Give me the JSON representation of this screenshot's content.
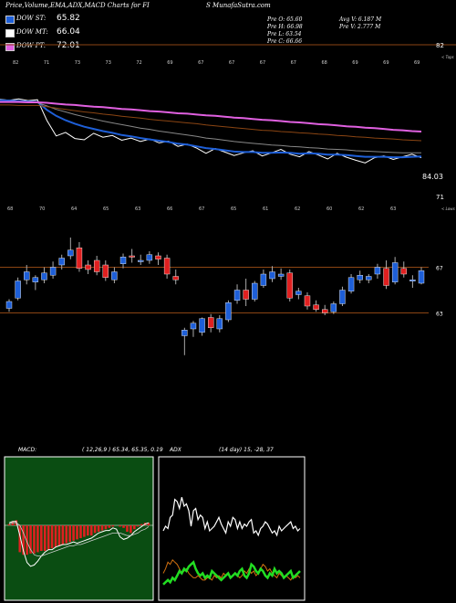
{
  "header": {
    "title": "Price,Volume,EMA,ADX,MACD Charts for FI",
    "site": "S MunafaSutra.com"
  },
  "legend": [
    {
      "label": "DOW ST:",
      "value": "65.82",
      "color": "#1e5fd8"
    },
    {
      "label": "DOW MT:",
      "value": "66.04",
      "color": "#ffffff"
    },
    {
      "label": "DOW PT:",
      "value": "72.01",
      "color": "#e060e0"
    }
  ],
  "quote": {
    "open": "Pre  O: 65.60",
    "high": "Pre  H: 66.98",
    "low": "Pre  L: 63.54",
    "close": "Pre  C: 66.66",
    "avg_vol": "Avg V: 6.187 M",
    "pre_vol": "Pre  V: 2.777 M"
  },
  "chart_data": [
    {
      "type": "line",
      "panel": "ema",
      "axis_labels": {
        "top": "82",
        "bottom": "71",
        "right_top": "< Tops",
        "price_tag": "84.03"
      },
      "top_tick_labels": [
        "82",
        "71",
        "73",
        "73",
        "72",
        "69",
        "67",
        "67",
        "67",
        "67",
        "68",
        "69",
        "69",
        "69"
      ],
      "ylim": [
        60,
        90
      ],
      "series": [
        {
          "color": "#ffffff",
          "values": [
            80.2,
            80.0,
            80.3,
            79.9,
            80.1,
            75.4,
            71.8,
            72.6,
            71.2,
            70.9,
            72.4,
            71.5,
            71.9,
            70.8,
            71.3,
            70.5,
            71.1,
            70.2,
            70.6,
            69.4,
            69.9,
            69.0,
            67.8,
            68.9,
            68.1,
            67.3,
            67.9,
            68.4,
            67.2,
            67.9,
            68.7,
            67.6,
            67.0,
            68.2,
            67.4,
            66.5,
            67.8,
            66.9,
            66.2,
            65.6,
            66.8,
            67.2,
            66.4,
            67.0,
            67.6,
            66.8
          ]
        },
        {
          "color": "#1e5fd8",
          "values": [
            80.0,
            79.9,
            79.8,
            79.7,
            79.6,
            77.8,
            76.4,
            75.4,
            74.6,
            73.9,
            73.4,
            72.9,
            72.5,
            72.0,
            71.7,
            71.3,
            71.0,
            70.7,
            70.4,
            70.0,
            69.8,
            69.4,
            69.0,
            68.8,
            68.5,
            68.2,
            68.1,
            68.1,
            67.9,
            67.9,
            68.0,
            67.9,
            67.7,
            67.8,
            67.7,
            67.5,
            67.5,
            67.4,
            67.2,
            67.0,
            67.0,
            67.0,
            66.9,
            66.9,
            67.0,
            67.1
          ]
        },
        {
          "color": "#888888",
          "values": [
            79.6,
            79.6,
            79.5,
            79.5,
            79.4,
            78.7,
            77.9,
            77.3,
            76.7,
            76.2,
            75.7,
            75.2,
            74.8,
            74.4,
            74.0,
            73.6,
            73.3,
            72.9,
            72.6,
            72.3,
            72.0,
            71.7,
            71.3,
            71.1,
            70.8,
            70.5,
            70.3,
            70.1,
            69.9,
            69.7,
            69.6,
            69.4,
            69.3,
            69.1,
            69.0,
            68.8,
            68.7,
            68.6,
            68.4,
            68.3,
            68.2,
            68.1,
            68.0,
            67.9,
            67.9,
            67.9
          ]
        },
        {
          "color": "#8b4513",
          "values": [
            78.9,
            78.9,
            78.8,
            78.8,
            78.8,
            78.5,
            78.2,
            77.9,
            77.6,
            77.3,
            77.1,
            76.8,
            76.6,
            76.3,
            76.1,
            75.9,
            75.6,
            75.4,
            75.2,
            75.0,
            74.8,
            74.6,
            74.3,
            74.1,
            73.9,
            73.7,
            73.5,
            73.3,
            73.1,
            73.0,
            72.8,
            72.7,
            72.5,
            72.4,
            72.2,
            72.1,
            71.9,
            71.8,
            71.6,
            71.5,
            71.3,
            71.2,
            71.1,
            70.9,
            70.8,
            70.7
          ]
        },
        {
          "color": "#e060e0",
          "values": [
            79.6,
            79.6,
            79.6,
            79.5,
            79.5,
            79.4,
            79.2,
            79.0,
            78.9,
            78.7,
            78.5,
            78.4,
            78.2,
            78.0,
            77.9,
            77.7,
            77.5,
            77.4,
            77.2,
            77.0,
            76.9,
            76.7,
            76.5,
            76.4,
            76.2,
            76.0,
            75.9,
            75.7,
            75.5,
            75.4,
            75.2,
            75.0,
            74.9,
            74.7,
            74.5,
            74.4,
            74.2,
            74.0,
            73.9,
            73.7,
            73.6,
            73.4,
            73.2,
            73.1,
            72.9,
            72.8
          ]
        }
      ]
    },
    {
      "type": "candlestick",
      "panel": "price",
      "axis_labels": {
        "right_top": "< Lows",
        "level_high": "67",
        "level_low": "63"
      },
      "top_tick_labels": [
        "68",
        "70",
        "64",
        "65",
        "63",
        "66",
        "67",
        "65",
        "61",
        "62",
        "60",
        "62",
        "63"
      ],
      "ylim": [
        58,
        72
      ],
      "levels": [
        67,
        63
      ],
      "candles": [
        {
          "o": 63.4,
          "h": 64.2,
          "l": 63.1,
          "c": 64.0
        },
        {
          "o": 64.3,
          "h": 66.1,
          "l": 64.1,
          "c": 65.8
        },
        {
          "o": 65.9,
          "h": 67.2,
          "l": 65.5,
          "c": 66.6
        },
        {
          "o": 65.7,
          "h": 66.3,
          "l": 65.0,
          "c": 66.1
        },
        {
          "o": 65.9,
          "h": 67.0,
          "l": 65.6,
          "c": 66.5
        },
        {
          "o": 66.3,
          "h": 67.5,
          "l": 66.0,
          "c": 67.0
        },
        {
          "o": 67.2,
          "h": 68.1,
          "l": 66.8,
          "c": 67.8
        },
        {
          "o": 68.0,
          "h": 69.6,
          "l": 67.7,
          "c": 68.5
        },
        {
          "o": 68.7,
          "h": 69.2,
          "l": 66.6,
          "c": 66.9
        },
        {
          "o": 67.2,
          "h": 67.6,
          "l": 66.4,
          "c": 66.8
        },
        {
          "o": 67.6,
          "h": 68.0,
          "l": 66.3,
          "c": 66.6
        },
        {
          "o": 67.2,
          "h": 67.6,
          "l": 65.8,
          "c": 66.1
        },
        {
          "o": 65.9,
          "h": 67.0,
          "l": 65.6,
          "c": 66.6
        },
        {
          "o": 67.3,
          "h": 68.2,
          "l": 66.9,
          "c": 67.9
        },
        {
          "o": 68.0,
          "h": 68.6,
          "l": 67.4,
          "c": 67.9
        },
        {
          "o": 67.6,
          "h": 68.1,
          "l": 67.2,
          "c": 67.6
        },
        {
          "o": 67.6,
          "h": 68.4,
          "l": 67.3,
          "c": 68.1
        },
        {
          "o": 68.0,
          "h": 68.3,
          "l": 67.2,
          "c": 67.7
        },
        {
          "o": 67.8,
          "h": 68.1,
          "l": 66.0,
          "c": 66.4
        },
        {
          "o": 66.2,
          "h": 66.8,
          "l": 65.5,
          "c": 65.9
        },
        {
          "o": 61.0,
          "h": 61.7,
          "l": 59.3,
          "c": 61.5
        },
        {
          "o": 61.6,
          "h": 62.3,
          "l": 60.9,
          "c": 62.1
        },
        {
          "o": 61.3,
          "h": 62.6,
          "l": 61.0,
          "c": 62.5
        },
        {
          "o": 62.6,
          "h": 62.9,
          "l": 61.3,
          "c": 61.7
        },
        {
          "o": 61.6,
          "h": 62.8,
          "l": 61.3,
          "c": 62.5
        },
        {
          "o": 62.4,
          "h": 64.1,
          "l": 62.2,
          "c": 63.9
        },
        {
          "o": 64.1,
          "h": 65.5,
          "l": 63.8,
          "c": 65.0
        },
        {
          "o": 65.0,
          "h": 66.0,
          "l": 63.6,
          "c": 64.2
        },
        {
          "o": 64.2,
          "h": 65.8,
          "l": 64.0,
          "c": 65.6
        },
        {
          "o": 65.4,
          "h": 66.8,
          "l": 65.2,
          "c": 66.4
        },
        {
          "o": 66.0,
          "h": 67.1,
          "l": 65.7,
          "c": 66.6
        },
        {
          "o": 66.2,
          "h": 66.9,
          "l": 65.9,
          "c": 66.4
        },
        {
          "o": 66.5,
          "h": 66.8,
          "l": 64.0,
          "c": 64.3
        },
        {
          "o": 64.6,
          "h": 65.2,
          "l": 64.2,
          "c": 64.9
        },
        {
          "o": 64.5,
          "h": 64.8,
          "l": 63.3,
          "c": 63.6
        },
        {
          "o": 63.7,
          "h": 64.1,
          "l": 63.1,
          "c": 63.3
        },
        {
          "o": 63.3,
          "h": 63.7,
          "l": 62.8,
          "c": 63.0
        },
        {
          "o": 63.1,
          "h": 64.0,
          "l": 62.9,
          "c": 63.8
        },
        {
          "o": 63.8,
          "h": 65.3,
          "l": 63.6,
          "c": 65.0
        },
        {
          "o": 64.9,
          "h": 66.4,
          "l": 64.7,
          "c": 66.1
        },
        {
          "o": 65.9,
          "h": 66.7,
          "l": 65.6,
          "c": 66.3
        },
        {
          "o": 65.9,
          "h": 66.4,
          "l": 65.6,
          "c": 66.2
        },
        {
          "o": 66.4,
          "h": 67.3,
          "l": 66.0,
          "c": 67.0
        },
        {
          "o": 66.9,
          "h": 67.6,
          "l": 65.1,
          "c": 65.4
        },
        {
          "o": 65.7,
          "h": 67.9,
          "l": 65.5,
          "c": 67.4
        },
        {
          "o": 66.9,
          "h": 67.5,
          "l": 66.1,
          "c": 66.4
        },
        {
          "o": 65.8,
          "h": 66.3,
          "l": 65.2,
          "c": 65.9
        },
        {
          "o": 65.6,
          "h": 67.0,
          "l": 65.5,
          "c": 66.7
        }
      ]
    },
    {
      "type": "macd",
      "panel": "macd",
      "label": "MACD:",
      "params": "( 12,26,9 ) 65.34,  65.35,  0.19",
      "ylim": [
        -4,
        3
      ],
      "histogram": [
        0.1,
        0.3,
        0.4,
        -2.1,
        -2.3,
        -2.3,
        -2.2,
        -2.2,
        -2.1,
        -2.0,
        -2.0,
        -1.9,
        -1.8,
        -1.7,
        -1.6,
        -1.5,
        -1.4,
        -1.3,
        -1.2,
        -1.1,
        -1.0,
        -0.9,
        -0.8,
        -0.8,
        -0.6,
        -0.5,
        -0.4,
        -0.3,
        -0.2,
        -0.1,
        0.0,
        -0.1,
        -0.2,
        -0.5,
        -0.6,
        -0.3,
        -0.1,
        0.1,
        0.2,
        0.2
      ],
      "macd_line": [
        0.2,
        0.3,
        0.3,
        -0.8,
        -2.0,
        -2.9,
        -3.2,
        -3.1,
        -2.8,
        -2.4,
        -2.1,
        -1.9,
        -1.9,
        -1.7,
        -1.6,
        -1.5,
        -1.5,
        -1.4,
        -1.3,
        -1.4,
        -1.3,
        -1.2,
        -1.1,
        -1.0,
        -0.8,
        -0.6,
        -0.5,
        -0.4,
        -0.4,
        -0.2,
        -0.3,
        -0.9,
        -1.1,
        -1.0,
        -0.8,
        -0.5,
        -0.3,
        -0.1,
        0.1,
        0.2
      ],
      "signal_line": [
        0.1,
        0.2,
        0.2,
        0.0,
        -0.6,
        -1.3,
        -1.9,
        -2.3,
        -2.4,
        -2.4,
        -2.3,
        -2.2,
        -2.1,
        -2.0,
        -1.9,
        -1.8,
        -1.7,
        -1.6,
        -1.6,
        -1.5,
        -1.5,
        -1.4,
        -1.3,
        -1.2,
        -1.1,
        -1.0,
        -0.9,
        -0.8,
        -0.7,
        -0.6,
        -0.6,
        -0.6,
        -0.7,
        -0.8,
        -0.8,
        -0.7,
        -0.6,
        -0.4,
        -0.3,
        -0.1
      ]
    },
    {
      "type": "adx",
      "panel": "adx",
      "label": "ADX",
      "params": "(14  day) 15,  -28,  37",
      "ylim": [
        0,
        60
      ],
      "plus_di": [
        29,
        31,
        30,
        35,
        36,
        43,
        42,
        39,
        44,
        40,
        41,
        38,
        31,
        38,
        39,
        34,
        36,
        35,
        30,
        33,
        29,
        30,
        31,
        33,
        35,
        32,
        30,
        28,
        33,
        31,
        35,
        34,
        30,
        33,
        30,
        32,
        31,
        33,
        34,
        28,
        29,
        27,
        30,
        31,
        33,
        32,
        30,
        28,
        29,
        27,
        31,
        29,
        30,
        31,
        32,
        33,
        30,
        31,
        29,
        30
      ],
      "minus_di": [
        10,
        12,
        15,
        14,
        16,
        15,
        14,
        12,
        10,
        11,
        12,
        10,
        9,
        8,
        8,
        9,
        8,
        7,
        7,
        8,
        8,
        7,
        9,
        8,
        9,
        8,
        10,
        9,
        10,
        8,
        9,
        10,
        9,
        8,
        9,
        11,
        10,
        12,
        10,
        11,
        9,
        10,
        12,
        14,
        13,
        11,
        12,
        10,
        9,
        8,
        10,
        9,
        8,
        9,
        8,
        7,
        9,
        8,
        9,
        8
      ],
      "adx": [
        5,
        6,
        7,
        6,
        8,
        7,
        9,
        11,
        10,
        12,
        11,
        13,
        14,
        15,
        12,
        10,
        9,
        10,
        8,
        9,
        8,
        11,
        10,
        9,
        8,
        7,
        8,
        9,
        10,
        8,
        9,
        10,
        9,
        11,
        12,
        9,
        8,
        10,
        14,
        13,
        11,
        10,
        12,
        11,
        9,
        8,
        10,
        9,
        12,
        10,
        11,
        10,
        8,
        9,
        10,
        11,
        8,
        9,
        10,
        11
      ]
    }
  ]
}
